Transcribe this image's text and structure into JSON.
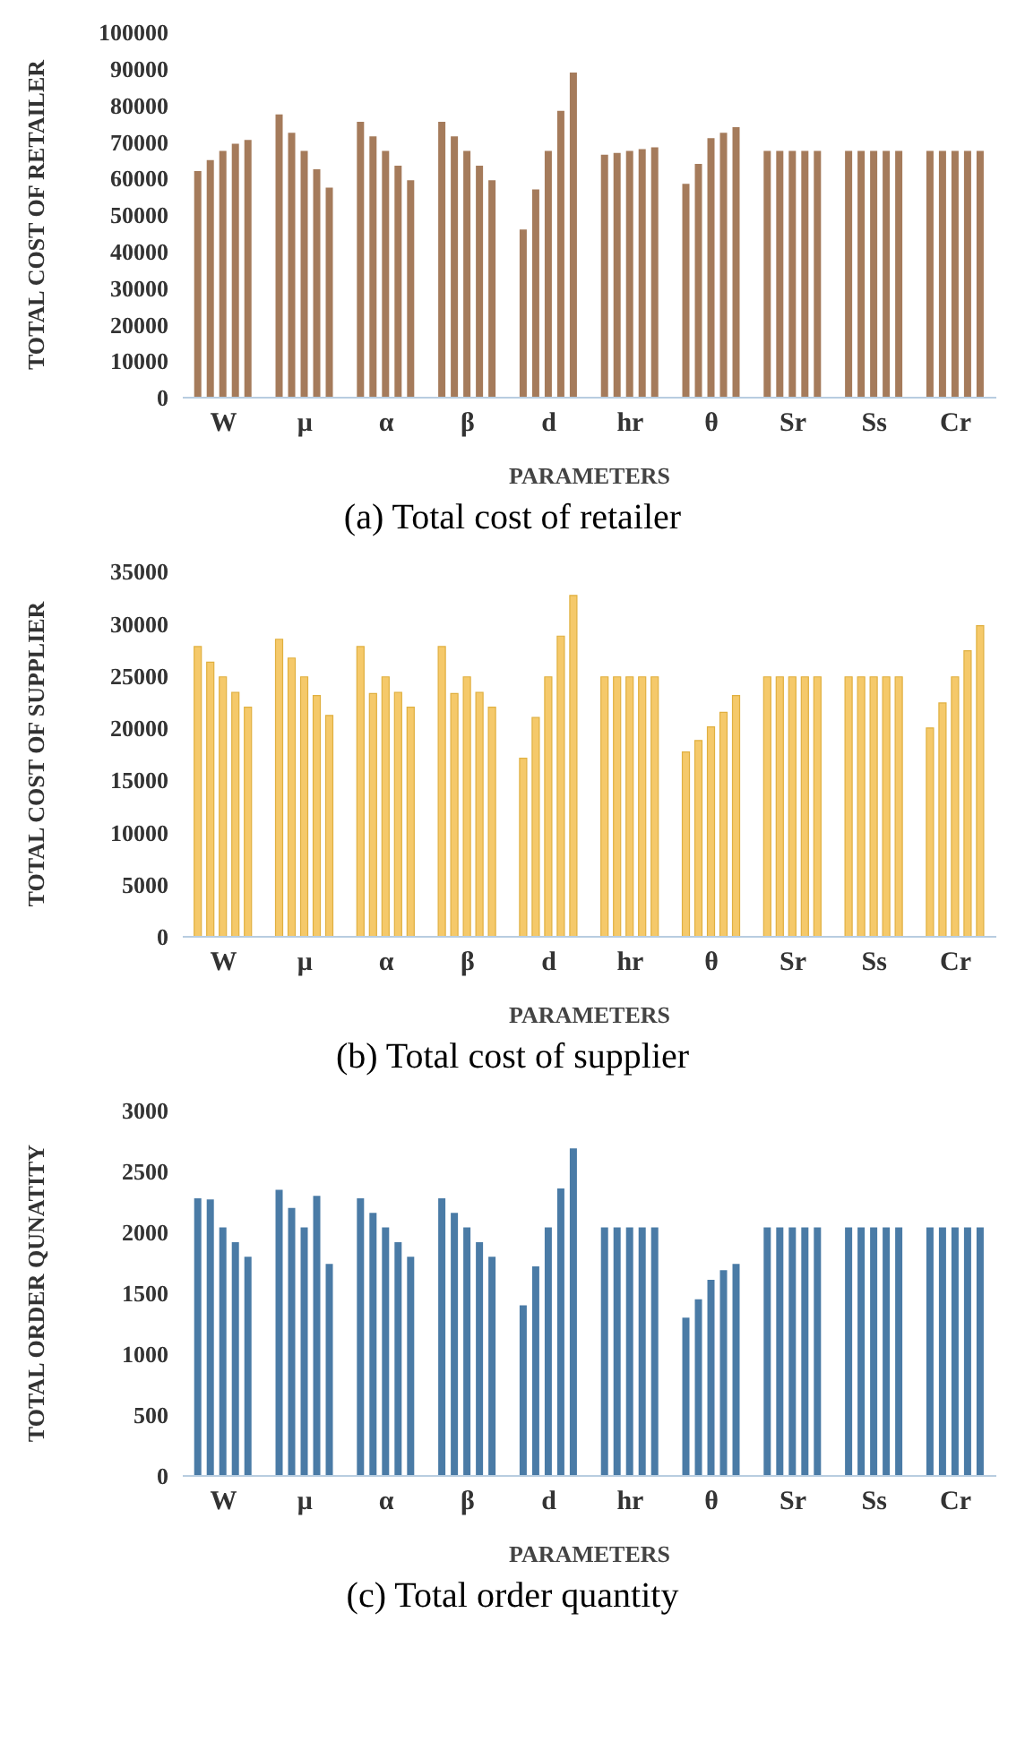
{
  "chart_data": [
    {
      "type": "bar",
      "title": "(a) Total cost of retailer",
      "xlabel": "PARAMETERS",
      "ylabel": "TOTAL COST OF RETAILER",
      "categories": [
        "W",
        "μ",
        "α",
        "β",
        "d",
        "hr",
        "θ",
        "Sr",
        "Ss",
        "Cr"
      ],
      "ylim": [
        0,
        100000
      ],
      "yticks": [
        0,
        10000,
        20000,
        30000,
        40000,
        50000,
        60000,
        70000,
        80000,
        90000,
        100000
      ],
      "grid": false,
      "legend": false,
      "series": [
        {
          "color": "#a57b5b",
          "values": [
            62000,
            77500,
            75500,
            75500,
            46000,
            66500,
            58500,
            67500,
            67500,
            67500
          ]
        },
        {
          "color": "#a57b5b",
          "values": [
            65000,
            72500,
            71500,
            71500,
            57000,
            67000,
            64000,
            67500,
            67500,
            67500
          ]
        },
        {
          "color": "#a57b5b",
          "values": [
            67500,
            67500,
            67500,
            67500,
            67500,
            67500,
            71000,
            67500,
            67500,
            67500
          ]
        },
        {
          "color": "#a57b5b",
          "values": [
            69500,
            62500,
            63500,
            63500,
            78500,
            68000,
            72500,
            67500,
            67500,
            67500
          ]
        },
        {
          "color": "#a57b5b",
          "values": [
            70500,
            57500,
            59500,
            59500,
            89000,
            68500,
            74000,
            67500,
            67500,
            67500
          ]
        }
      ]
    },
    {
      "type": "bar",
      "title": "(b) Total cost of supplier",
      "xlabel": "PARAMETERS",
      "ylabel": "TOTAL COST OF SUPPLIER",
      "categories": [
        "W",
        "μ",
        "α",
        "β",
        "d",
        "hr",
        "θ",
        "Sr",
        "Ss",
        "Cr"
      ],
      "ylim": [
        0,
        35000
      ],
      "yticks": [
        0,
        5000,
        10000,
        15000,
        20000,
        25000,
        30000,
        35000
      ],
      "grid": false,
      "legend": false,
      "series": [
        {
          "color": "#f5c96a",
          "values": [
            27800,
            28500,
            27800,
            27800,
            17100,
            24900,
            17700,
            24900,
            24900,
            20000
          ]
        },
        {
          "color": "#f5c96a",
          "values": [
            26300,
            26700,
            23300,
            23300,
            21000,
            24900,
            18800,
            24900,
            24900,
            22400
          ]
        },
        {
          "color": "#f5c96a",
          "values": [
            24900,
            24900,
            24900,
            24900,
            24900,
            24900,
            20100,
            24900,
            24900,
            24900
          ]
        },
        {
          "color": "#f5c96a",
          "values": [
            23400,
            23100,
            23400,
            23400,
            28800,
            24900,
            21500,
            24900,
            24900,
            27400
          ]
        },
        {
          "color": "#f5c96a",
          "values": [
            22000,
            21200,
            22000,
            22000,
            32700,
            24900,
            23100,
            24900,
            24900,
            29800
          ]
        }
      ]
    },
    {
      "type": "bar",
      "title": "(c) Total order quantity",
      "xlabel": "PARAMETERS",
      "ylabel": "TOTAL ORDER QUNATITY",
      "categories": [
        "W",
        "μ",
        "α",
        "β",
        "d",
        "hr",
        "θ",
        "Sr",
        "Ss",
        "Cr"
      ],
      "ylim": [
        0,
        3000
      ],
      "yticks": [
        0,
        500,
        1000,
        1500,
        2000,
        2500,
        3000
      ],
      "grid": false,
      "legend": false,
      "series": [
        {
          "color": "#4a7ba6",
          "values": [
            2280,
            2350,
            2280,
            2280,
            1400,
            2040,
            1300,
            2040,
            2040,
            2040
          ]
        },
        {
          "color": "#4a7ba6",
          "values": [
            2270,
            2200,
            2160,
            2160,
            1720,
            2040,
            1450,
            2040,
            2040,
            2040
          ]
        },
        {
          "color": "#4a7ba6",
          "values": [
            2040,
            2040,
            2040,
            2040,
            2040,
            2040,
            1610,
            2040,
            2040,
            2040
          ]
        },
        {
          "color": "#4a7ba6",
          "values": [
            1920,
            2300,
            1920,
            1920,
            2360,
            2040,
            1690,
            2040,
            2040,
            2040
          ]
        },
        {
          "color": "#4a7ba6",
          "values": [
            1800,
            1740,
            1800,
            1800,
            2690,
            2040,
            1740,
            2040,
            2040,
            2040
          ]
        }
      ]
    }
  ]
}
